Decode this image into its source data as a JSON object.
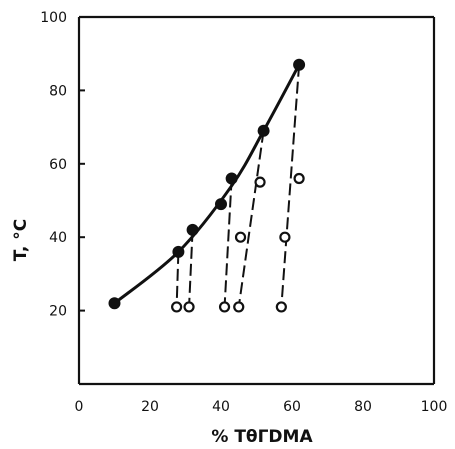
{
  "chart_data": {
    "type": "scatter",
    "xlabel": "% TθΓDMA",
    "ylabel": "T, °C",
    "xlim": [
      0,
      100
    ],
    "ylim": [
      0,
      100
    ],
    "x_ticks": [
      0,
      20,
      40,
      60,
      80,
      100
    ],
    "y_ticks": [
      20,
      40,
      60,
      80,
      100
    ],
    "grid": false,
    "series": [
      {
        "marker": "filled-circle",
        "points": [
          {
            "x": 10,
            "y": 22
          },
          {
            "x": 28,
            "y": 36
          },
          {
            "x": 32,
            "y": 42
          },
          {
            "x": 40,
            "y": 49
          },
          {
            "x": 43,
            "y": 56
          },
          {
            "x": 52,
            "y": 69
          },
          {
            "x": 62,
            "y": 87
          }
        ]
      },
      {
        "marker": "open-circle",
        "points": [
          {
            "x": 27.5,
            "y": 21
          },
          {
            "x": 31,
            "y": 21
          },
          {
            "x": 41,
            "y": 21
          },
          {
            "x": 45,
            "y": 21
          },
          {
            "x": 45.5,
            "y": 40
          },
          {
            "x": 51,
            "y": 55
          },
          {
            "x": 57,
            "y": 21
          },
          {
            "x": 58,
            "y": 40
          },
          {
            "x": 62,
            "y": 56
          }
        ]
      }
    ],
    "curve": [
      {
        "x": 10,
        "y": 22
      },
      {
        "x": 28,
        "y": 36
      },
      {
        "x": 43,
        "y": 54
      },
      {
        "x": 52,
        "y": 69
      },
      {
        "x": 62,
        "y": 87
      }
    ],
    "dashed_lines": [
      [
        {
          "x": 28,
          "y": 36
        },
        {
          "x": 27.5,
          "y": 21
        }
      ],
      [
        {
          "x": 32,
          "y": 42
        },
        {
          "x": 31,
          "y": 21
        }
      ],
      [
        {
          "x": 43,
          "y": 56
        },
        {
          "x": 41,
          "y": 21
        }
      ],
      [
        {
          "x": 52,
          "y": 69
        },
        {
          "x": 45,
          "y": 21
        }
      ],
      [
        {
          "x": 62,
          "y": 87
        },
        {
          "x": 57,
          "y": 21
        }
      ]
    ],
    "colors": {
      "ink": "#111111",
      "background": "#ffffff"
    }
  }
}
